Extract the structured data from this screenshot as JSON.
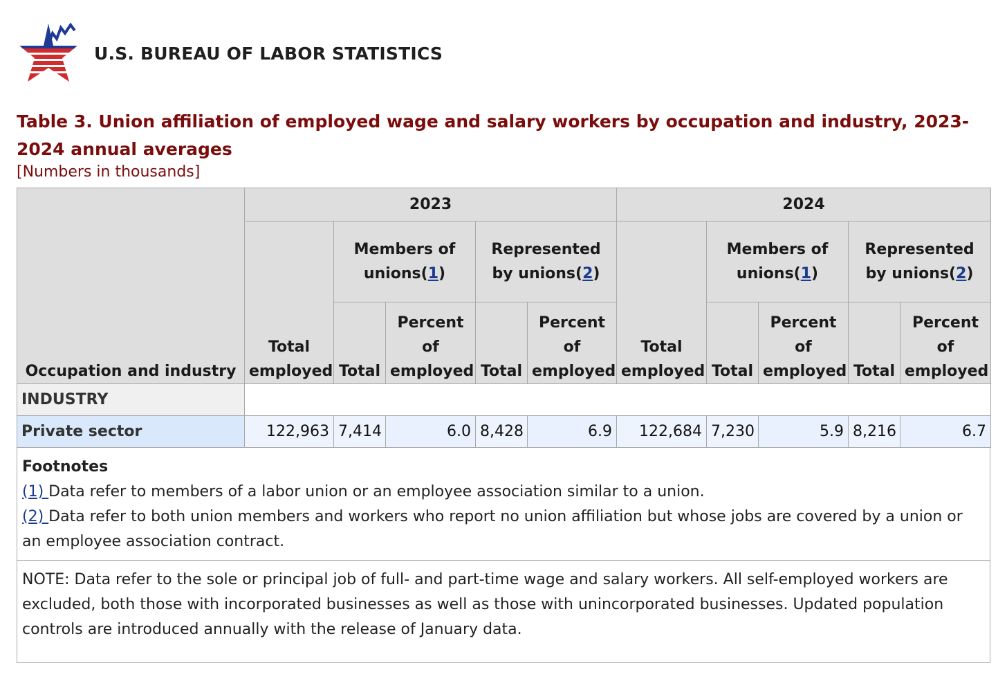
{
  "header": {
    "agency_name": "U.S. BUREAU OF LABOR STATISTICS",
    "logo_icon": "bls-star-logo-icon",
    "brand_colors": {
      "blue": "#1f3a93",
      "red": "#d12b2b"
    }
  },
  "table": {
    "title": "Table 3. Union affiliation of employed wage and salary workers by occupation and industry, 2023-2024 annual averages",
    "subtitle": "[Numbers in thousands]",
    "stub_header": "Occupation and industry",
    "years": [
      "2023",
      "2024"
    ],
    "col_total_employed": "Total employed",
    "members_label": "Members of unions(",
    "members_ref": "1",
    "represented_label": "Represented by unions(",
    "represented_ref": "2",
    "close_paren": ")",
    "col_total": "Total",
    "col_percent": "Percent of employed",
    "section_label": "INDUSTRY",
    "rows": [
      {
        "label": "Private sector",
        "y2023": {
          "total_employed": "122,963",
          "members_total": "7,414",
          "members_pct": "6.0",
          "represented_total": "8,428",
          "represented_pct": "6.9"
        },
        "y2024": {
          "total_employed": "122,684",
          "members_total": "7,230",
          "members_pct": "5.9",
          "represented_total": "8,216",
          "represented_pct": "6.7"
        }
      }
    ]
  },
  "footnotes": {
    "heading": "Footnotes",
    "items": [
      {
        "ref": "(1) ",
        "text": "Data refer to members of a labor union or an employee association similar to a union."
      },
      {
        "ref": "(2) ",
        "text": "Data refer to both union members and workers who report no union affiliation but whose jobs are covered by a union or an employee association contract."
      }
    ]
  },
  "note": "NOTE: Data refer to the sole or principal job of full- and part-time wage and salary workers. All self-employed workers are excluded, both those with incorporated businesses as well as those with unincorporated businesses. Updated population controls are introduced annually with the release of January data."
}
